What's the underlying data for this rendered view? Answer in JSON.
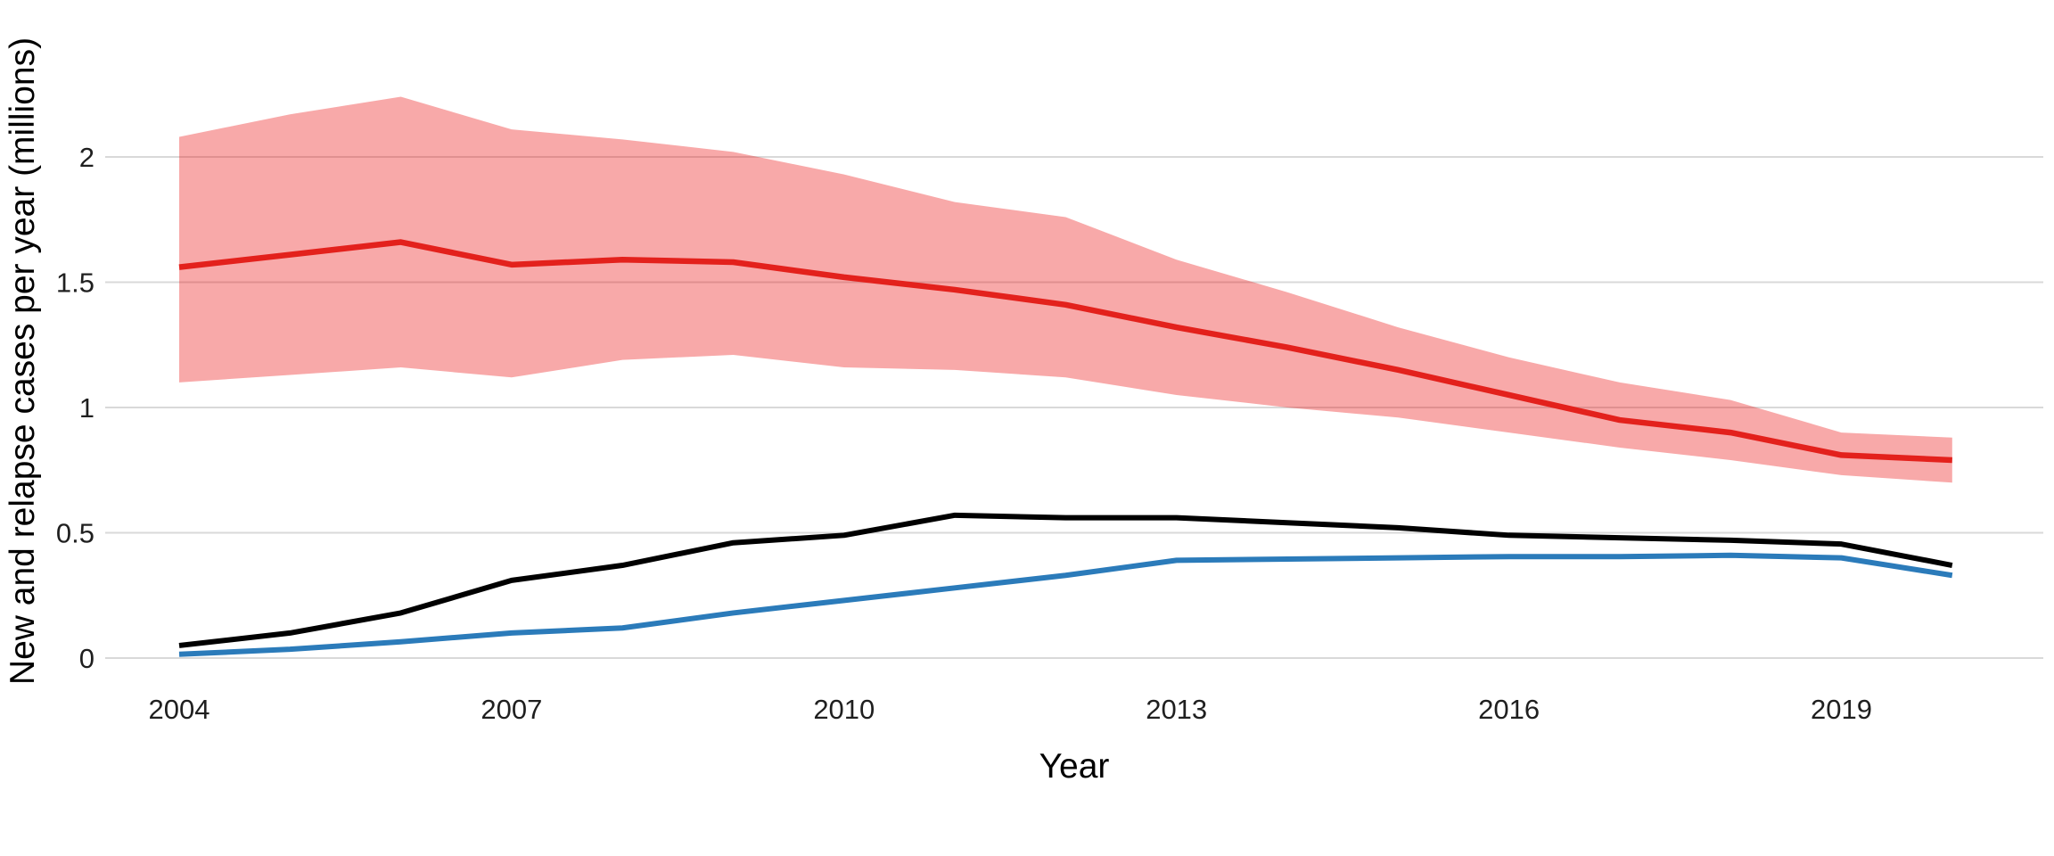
{
  "figure": {
    "y_axis_title": "New and relapse cases per year (millions)",
    "x_axis_title": "Year"
  },
  "colors": {
    "red_line": "#e3211c",
    "confidence_ribbon_base": "235,10,10",
    "confidence_ribbon_opacity": 0.35,
    "black_line": "#000000",
    "blue_line": "#2b7bba",
    "gridline": "#d9d9d9",
    "background": "#ffffff",
    "tick_text": "#1f1f1f"
  },
  "chart_data": {
    "type": "line",
    "title": "",
    "xlabel": "Year",
    "ylabel": "New and relapse cases per year (millions)",
    "x": [
      2004,
      2005,
      2006,
      2007,
      2008,
      2009,
      2010,
      2011,
      2012,
      2013,
      2014,
      2015,
      2016,
      2017,
      2018,
      2019,
      2020
    ],
    "x_tick_labels": [
      "2004",
      "2007",
      "2010",
      "2013",
      "2016",
      "2019"
    ],
    "x_tick_values": [
      2004,
      2007,
      2010,
      2013,
      2016,
      2019
    ],
    "y_tick_labels": [
      "0",
      "0.5",
      "1",
      "1.5",
      "2"
    ],
    "y_tick_values": [
      0,
      0.5,
      1,
      1.5,
      2
    ],
    "xlim": [
      2003.3,
      2020.8
    ],
    "ylim": [
      -0.1,
      2.35
    ],
    "grid": "horizontal-major-only",
    "legend": "none",
    "series": [
      {
        "name": "red_line_central_estimate",
        "color": "#e3211c",
        "values": [
          1.56,
          1.61,
          1.66,
          1.57,
          1.59,
          1.58,
          1.52,
          1.47,
          1.41,
          1.32,
          1.24,
          1.15,
          1.05,
          0.95,
          0.9,
          0.81,
          0.79
        ]
      },
      {
        "name": "black_line",
        "color": "#000000",
        "values": [
          0.05,
          0.1,
          0.18,
          0.31,
          0.37,
          0.46,
          0.49,
          0.57,
          0.56,
          0.56,
          0.54,
          0.52,
          0.49,
          0.48,
          0.47,
          0.455,
          0.37
        ]
      },
      {
        "name": "blue_line",
        "color": "#2b7bba",
        "values": [
          0.015,
          0.035,
          0.065,
          0.1,
          0.12,
          0.18,
          0.23,
          0.28,
          0.33,
          0.39,
          0.395,
          0.4,
          0.405,
          0.405,
          0.41,
          0.4,
          0.33
        ]
      }
    ],
    "ribbon": {
      "name": "red_line_uncertainty_band",
      "attached_to": "red_line_central_estimate",
      "upper": [
        2.08,
        2.17,
        2.24,
        2.11,
        2.07,
        2.02,
        1.93,
        1.82,
        1.76,
        1.59,
        1.46,
        1.32,
        1.2,
        1.1,
        1.03,
        0.9,
        0.88
      ],
      "lower": [
        1.1,
        1.13,
        1.16,
        1.12,
        1.19,
        1.21,
        1.16,
        1.15,
        1.12,
        1.05,
        1.0,
        0.96,
        0.9,
        0.84,
        0.79,
        0.73,
        0.7
      ]
    }
  }
}
